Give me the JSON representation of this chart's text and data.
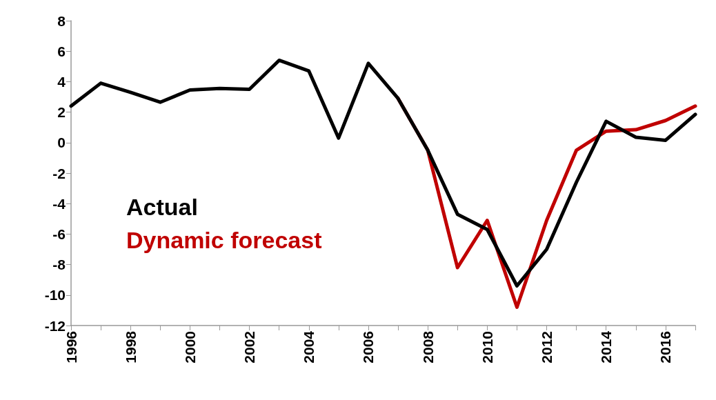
{
  "chart_data": {
    "type": "line",
    "categories": [
      "1996",
      null,
      "1998",
      null,
      "2000",
      null,
      "2002",
      null,
      "2004",
      null,
      "2006",
      null,
      "2008",
      null,
      "2010",
      null,
      "2012",
      null,
      "2014",
      null,
      "2016",
      null
    ],
    "series": [
      {
        "name": "Dynamic forecast",
        "color": "#c00000",
        "values": [
          null,
          null,
          null,
          null,
          null,
          null,
          null,
          null,
          null,
          null,
          null,
          2.9,
          -0.5,
          -8.2,
          -5.1,
          -10.8,
          -5.1,
          -0.5,
          0.75,
          0.85,
          1.45,
          2.4
        ]
      },
      {
        "name": "Actual",
        "color": "#000000",
        "values": [
          2.4,
          3.9,
          3.3,
          2.65,
          3.45,
          3.55,
          3.5,
          5.4,
          4.7,
          0.3,
          5.2,
          2.9,
          -0.5,
          -4.7,
          -5.7,
          -9.4,
          -7.0,
          -2.6,
          1.4,
          0.35,
          0.15,
          1.85
        ]
      }
    ],
    "ylim": [
      -12,
      8
    ],
    "yticks": [
      -12,
      -10,
      -8,
      -6,
      -4,
      -2,
      0,
      2,
      4,
      6,
      8
    ],
    "grid": false,
    "legend": "left",
    "marker": "none",
    "line_style": "solid"
  }
}
